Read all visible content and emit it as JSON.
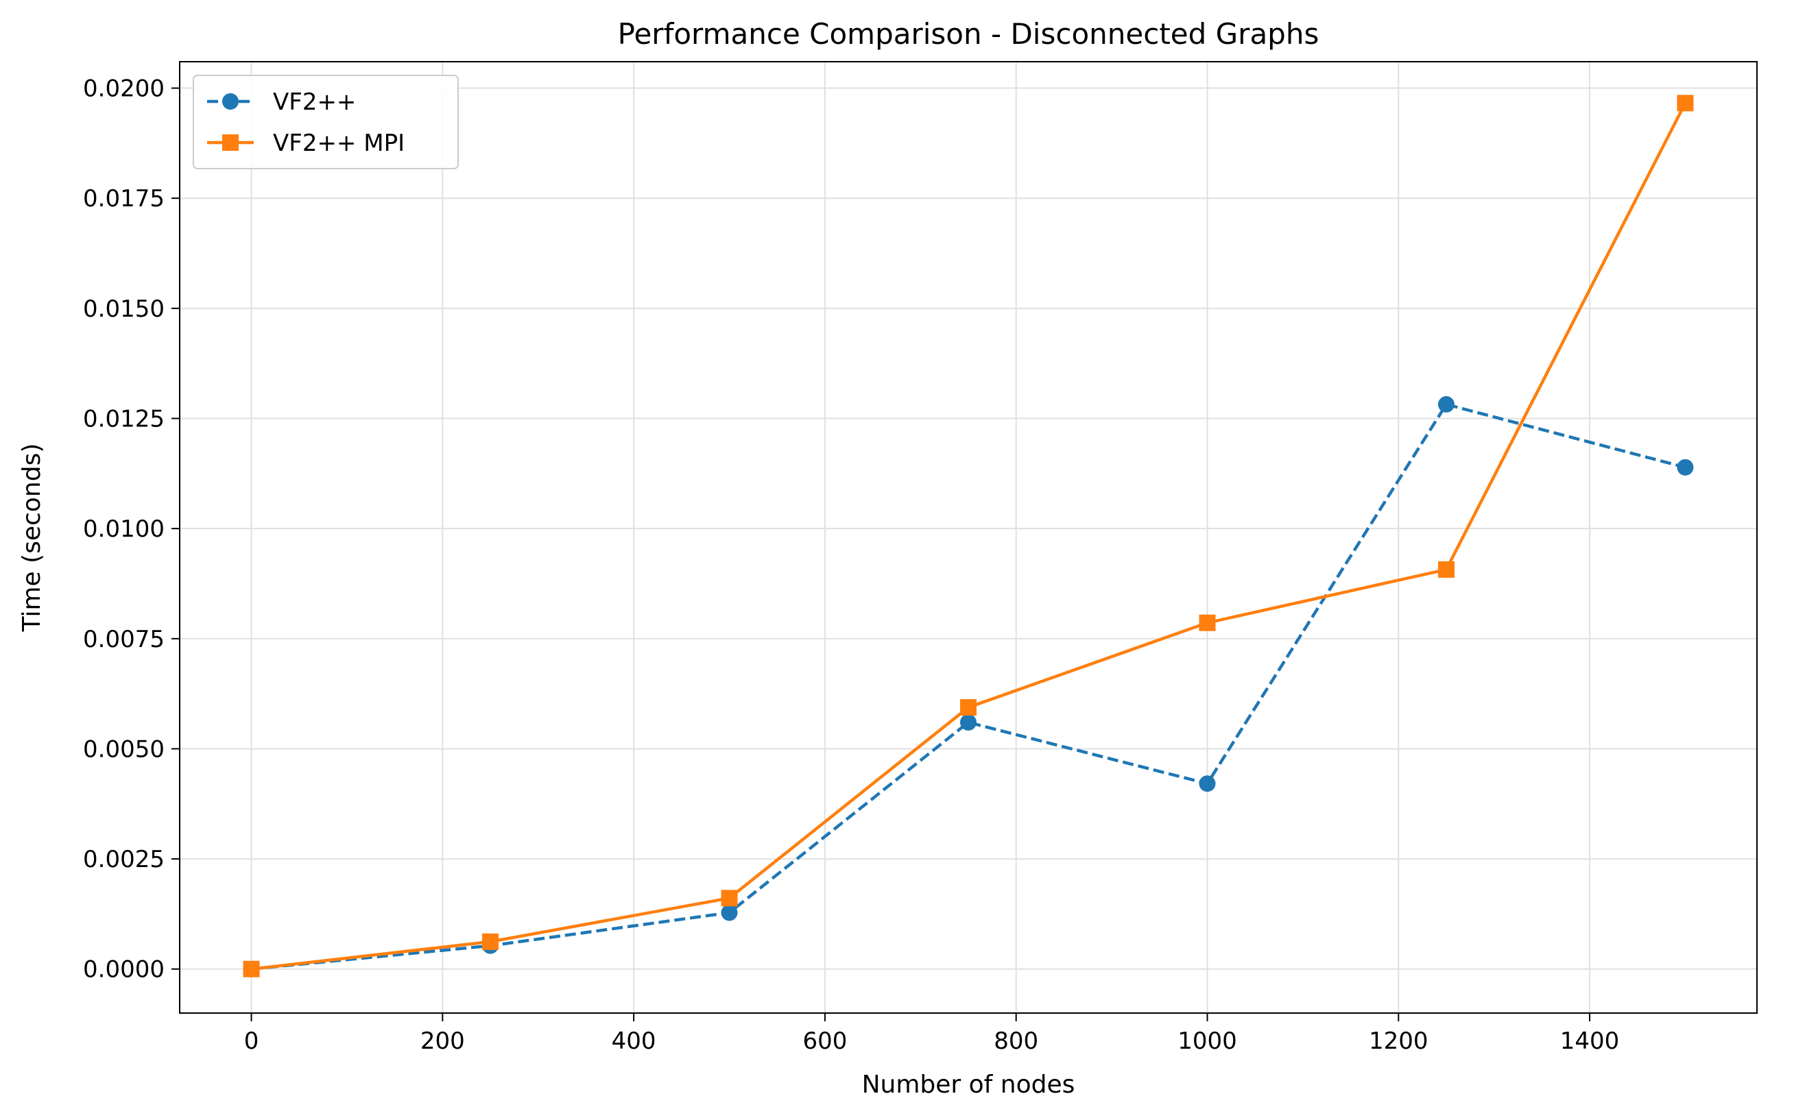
{
  "chart_data": {
    "type": "line",
    "title": "Performance Comparison - Disconnected Graphs",
    "xlabel": "Number of nodes",
    "ylabel": "Time (seconds)",
    "xlim": [
      -75,
      1575
    ],
    "ylim": [
      -0.001,
      0.0206
    ],
    "x_ticks": [
      0,
      200,
      400,
      600,
      800,
      1000,
      1200,
      1400
    ],
    "x_tick_labels": [
      "0",
      "200",
      "400",
      "600",
      "800",
      "1000",
      "1200",
      "1400"
    ],
    "y_ticks": [
      0,
      0.0025,
      0.005,
      0.0075,
      0.01,
      0.0125,
      0.015,
      0.0175,
      0.02
    ],
    "y_tick_labels": [
      "0.0000",
      "0.0025",
      "0.0050",
      "0.0075",
      "0.0100",
      "0.0125",
      "0.0150",
      "0.0175",
      "0.0200"
    ],
    "grid": true,
    "legend_position": "top-left",
    "x": [
      0,
      250,
      500,
      750,
      1000,
      1250,
      1500
    ],
    "series": [
      {
        "name": "VF2++",
        "values": [
          0.0,
          0.00053,
          0.00128,
          0.0056,
          0.00421,
          0.01282,
          0.01139
        ],
        "color": "#1f77b4",
        "line_style": "dashed",
        "marker": "circle"
      },
      {
        "name": "VF2++ MPI",
        "values": [
          0.0,
          0.00062,
          0.00161,
          0.00594,
          0.00786,
          0.00907,
          0.01966
        ],
        "color": "#ff7f0e",
        "line_style": "solid",
        "marker": "square"
      }
    ]
  }
}
